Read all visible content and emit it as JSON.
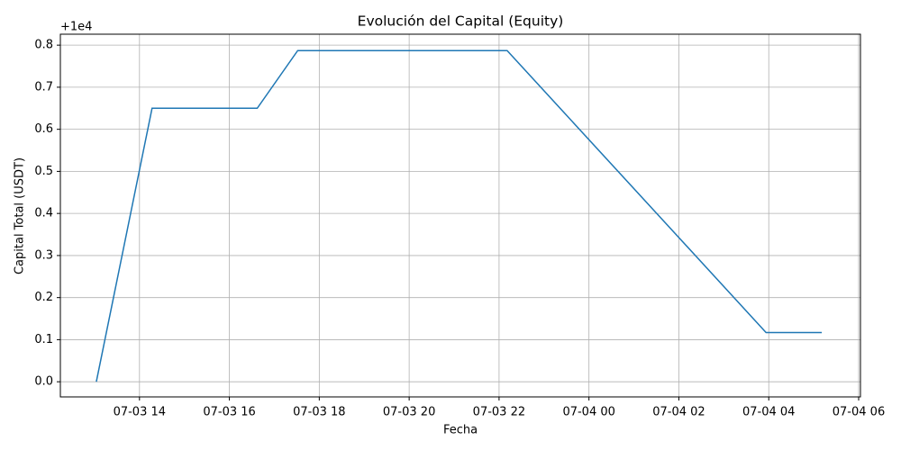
{
  "chart_data": {
    "type": "line",
    "title": "Evolución del Capital (Equity)",
    "x_label": "Fecha",
    "y_label": "Capital Total (USDT)",
    "y_offset_label": "+1e4",
    "x": [
      13.04,
      14.28,
      16.62,
      17.52,
      22.18,
      27.94,
      29.18
    ],
    "series": [
      {
        "name": "Equity",
        "color": "#1f77b4",
        "values": [
          0,
          0.65,
          0.65,
          0.787,
          0.787,
          0.117,
          0.117
        ]
      }
    ],
    "xlim": [
      12.24,
      30.04
    ],
    "xticks": [
      {
        "value": 14,
        "label": "07-03 14"
      },
      {
        "value": 16,
        "label": "07-03 16"
      },
      {
        "value": 18,
        "label": "07-03 18"
      },
      {
        "value": 20,
        "label": "07-03 20"
      },
      {
        "value": 22,
        "label": "07-03 22"
      },
      {
        "value": 24,
        "label": "07-04 00"
      },
      {
        "value": 26,
        "label": "07-04 02"
      },
      {
        "value": 28,
        "label": "07-04 04"
      },
      {
        "value": 30,
        "label": "07-04 06"
      }
    ],
    "ylim": [
      -0.036,
      0.826
    ],
    "yticks": [
      {
        "value": 0,
        "label": "0.0"
      },
      {
        "value": 0.1,
        "label": "0.1"
      },
      {
        "value": 0.2,
        "label": "0.2"
      },
      {
        "value": 0.3,
        "label": "0.3"
      },
      {
        "value": 0.4,
        "label": "0.4"
      },
      {
        "value": 0.5,
        "label": "0.5"
      },
      {
        "value": 0.6,
        "label": "0.6"
      },
      {
        "value": 0.7,
        "label": "0.7"
      },
      {
        "value": 0.8,
        "label": "0.8"
      }
    ],
    "grid": true
  }
}
